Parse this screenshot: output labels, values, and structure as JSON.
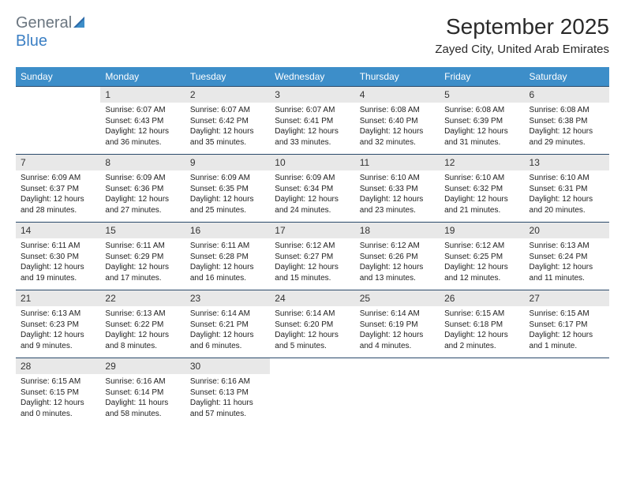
{
  "logo": {
    "text1": "General",
    "text2": "Blue"
  },
  "title": "September 2025",
  "location": "Zayed City, United Arab Emirates",
  "colors": {
    "header_bg": "#3d8ec9",
    "header_fg": "#ffffff",
    "daynum_bg": "#e8e8e8",
    "daynum_border": "#2a4a6a",
    "logo_gray": "#6b7680",
    "logo_blue": "#3b7fc4"
  },
  "weekdays": [
    "Sunday",
    "Monday",
    "Tuesday",
    "Wednesday",
    "Thursday",
    "Friday",
    "Saturday"
  ],
  "weeks": [
    [
      null,
      {
        "n": "1",
        "sr": "Sunrise: 6:07 AM",
        "ss": "Sunset: 6:43 PM",
        "d1": "Daylight: 12 hours",
        "d2": "and 36 minutes."
      },
      {
        "n": "2",
        "sr": "Sunrise: 6:07 AM",
        "ss": "Sunset: 6:42 PM",
        "d1": "Daylight: 12 hours",
        "d2": "and 35 minutes."
      },
      {
        "n": "3",
        "sr": "Sunrise: 6:07 AM",
        "ss": "Sunset: 6:41 PM",
        "d1": "Daylight: 12 hours",
        "d2": "and 33 minutes."
      },
      {
        "n": "4",
        "sr": "Sunrise: 6:08 AM",
        "ss": "Sunset: 6:40 PM",
        "d1": "Daylight: 12 hours",
        "d2": "and 32 minutes."
      },
      {
        "n": "5",
        "sr": "Sunrise: 6:08 AM",
        "ss": "Sunset: 6:39 PM",
        "d1": "Daylight: 12 hours",
        "d2": "and 31 minutes."
      },
      {
        "n": "6",
        "sr": "Sunrise: 6:08 AM",
        "ss": "Sunset: 6:38 PM",
        "d1": "Daylight: 12 hours",
        "d2": "and 29 minutes."
      }
    ],
    [
      {
        "n": "7",
        "sr": "Sunrise: 6:09 AM",
        "ss": "Sunset: 6:37 PM",
        "d1": "Daylight: 12 hours",
        "d2": "and 28 minutes."
      },
      {
        "n": "8",
        "sr": "Sunrise: 6:09 AM",
        "ss": "Sunset: 6:36 PM",
        "d1": "Daylight: 12 hours",
        "d2": "and 27 minutes."
      },
      {
        "n": "9",
        "sr": "Sunrise: 6:09 AM",
        "ss": "Sunset: 6:35 PM",
        "d1": "Daylight: 12 hours",
        "d2": "and 25 minutes."
      },
      {
        "n": "10",
        "sr": "Sunrise: 6:09 AM",
        "ss": "Sunset: 6:34 PM",
        "d1": "Daylight: 12 hours",
        "d2": "and 24 minutes."
      },
      {
        "n": "11",
        "sr": "Sunrise: 6:10 AM",
        "ss": "Sunset: 6:33 PM",
        "d1": "Daylight: 12 hours",
        "d2": "and 23 minutes."
      },
      {
        "n": "12",
        "sr": "Sunrise: 6:10 AM",
        "ss": "Sunset: 6:32 PM",
        "d1": "Daylight: 12 hours",
        "d2": "and 21 minutes."
      },
      {
        "n": "13",
        "sr": "Sunrise: 6:10 AM",
        "ss": "Sunset: 6:31 PM",
        "d1": "Daylight: 12 hours",
        "d2": "and 20 minutes."
      }
    ],
    [
      {
        "n": "14",
        "sr": "Sunrise: 6:11 AM",
        "ss": "Sunset: 6:30 PM",
        "d1": "Daylight: 12 hours",
        "d2": "and 19 minutes."
      },
      {
        "n": "15",
        "sr": "Sunrise: 6:11 AM",
        "ss": "Sunset: 6:29 PM",
        "d1": "Daylight: 12 hours",
        "d2": "and 17 minutes."
      },
      {
        "n": "16",
        "sr": "Sunrise: 6:11 AM",
        "ss": "Sunset: 6:28 PM",
        "d1": "Daylight: 12 hours",
        "d2": "and 16 minutes."
      },
      {
        "n": "17",
        "sr": "Sunrise: 6:12 AM",
        "ss": "Sunset: 6:27 PM",
        "d1": "Daylight: 12 hours",
        "d2": "and 15 minutes."
      },
      {
        "n": "18",
        "sr": "Sunrise: 6:12 AM",
        "ss": "Sunset: 6:26 PM",
        "d1": "Daylight: 12 hours",
        "d2": "and 13 minutes."
      },
      {
        "n": "19",
        "sr": "Sunrise: 6:12 AM",
        "ss": "Sunset: 6:25 PM",
        "d1": "Daylight: 12 hours",
        "d2": "and 12 minutes."
      },
      {
        "n": "20",
        "sr": "Sunrise: 6:13 AM",
        "ss": "Sunset: 6:24 PM",
        "d1": "Daylight: 12 hours",
        "d2": "and 11 minutes."
      }
    ],
    [
      {
        "n": "21",
        "sr": "Sunrise: 6:13 AM",
        "ss": "Sunset: 6:23 PM",
        "d1": "Daylight: 12 hours",
        "d2": "and 9 minutes."
      },
      {
        "n": "22",
        "sr": "Sunrise: 6:13 AM",
        "ss": "Sunset: 6:22 PM",
        "d1": "Daylight: 12 hours",
        "d2": "and 8 minutes."
      },
      {
        "n": "23",
        "sr": "Sunrise: 6:14 AM",
        "ss": "Sunset: 6:21 PM",
        "d1": "Daylight: 12 hours",
        "d2": "and 6 minutes."
      },
      {
        "n": "24",
        "sr": "Sunrise: 6:14 AM",
        "ss": "Sunset: 6:20 PM",
        "d1": "Daylight: 12 hours",
        "d2": "and 5 minutes."
      },
      {
        "n": "25",
        "sr": "Sunrise: 6:14 AM",
        "ss": "Sunset: 6:19 PM",
        "d1": "Daylight: 12 hours",
        "d2": "and 4 minutes."
      },
      {
        "n": "26",
        "sr": "Sunrise: 6:15 AM",
        "ss": "Sunset: 6:18 PM",
        "d1": "Daylight: 12 hours",
        "d2": "and 2 minutes."
      },
      {
        "n": "27",
        "sr": "Sunrise: 6:15 AM",
        "ss": "Sunset: 6:17 PM",
        "d1": "Daylight: 12 hours",
        "d2": "and 1 minute."
      }
    ],
    [
      {
        "n": "28",
        "sr": "Sunrise: 6:15 AM",
        "ss": "Sunset: 6:15 PM",
        "d1": "Daylight: 12 hours",
        "d2": "and 0 minutes."
      },
      {
        "n": "29",
        "sr": "Sunrise: 6:16 AM",
        "ss": "Sunset: 6:14 PM",
        "d1": "Daylight: 11 hours",
        "d2": "and 58 minutes."
      },
      {
        "n": "30",
        "sr": "Sunrise: 6:16 AM",
        "ss": "Sunset: 6:13 PM",
        "d1": "Daylight: 11 hours",
        "d2": "and 57 minutes."
      },
      null,
      null,
      null,
      null
    ]
  ]
}
